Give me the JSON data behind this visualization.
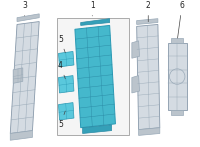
{
  "bg_color": "#ffffff",
  "part_color_blue": "#45b8cc",
  "part_color_blue2": "#5ac8dc",
  "part_color_gray_light": "#d4dbe2",
  "part_color_gray_mid": "#bbc4cc",
  "part_color_gray_dark": "#9aaab8",
  "line_color": "#444444",
  "grid_color": "#8899aa",
  "text_color": "#222222",
  "figsize": [
    2.0,
    1.47
  ],
  "dpi": 100
}
